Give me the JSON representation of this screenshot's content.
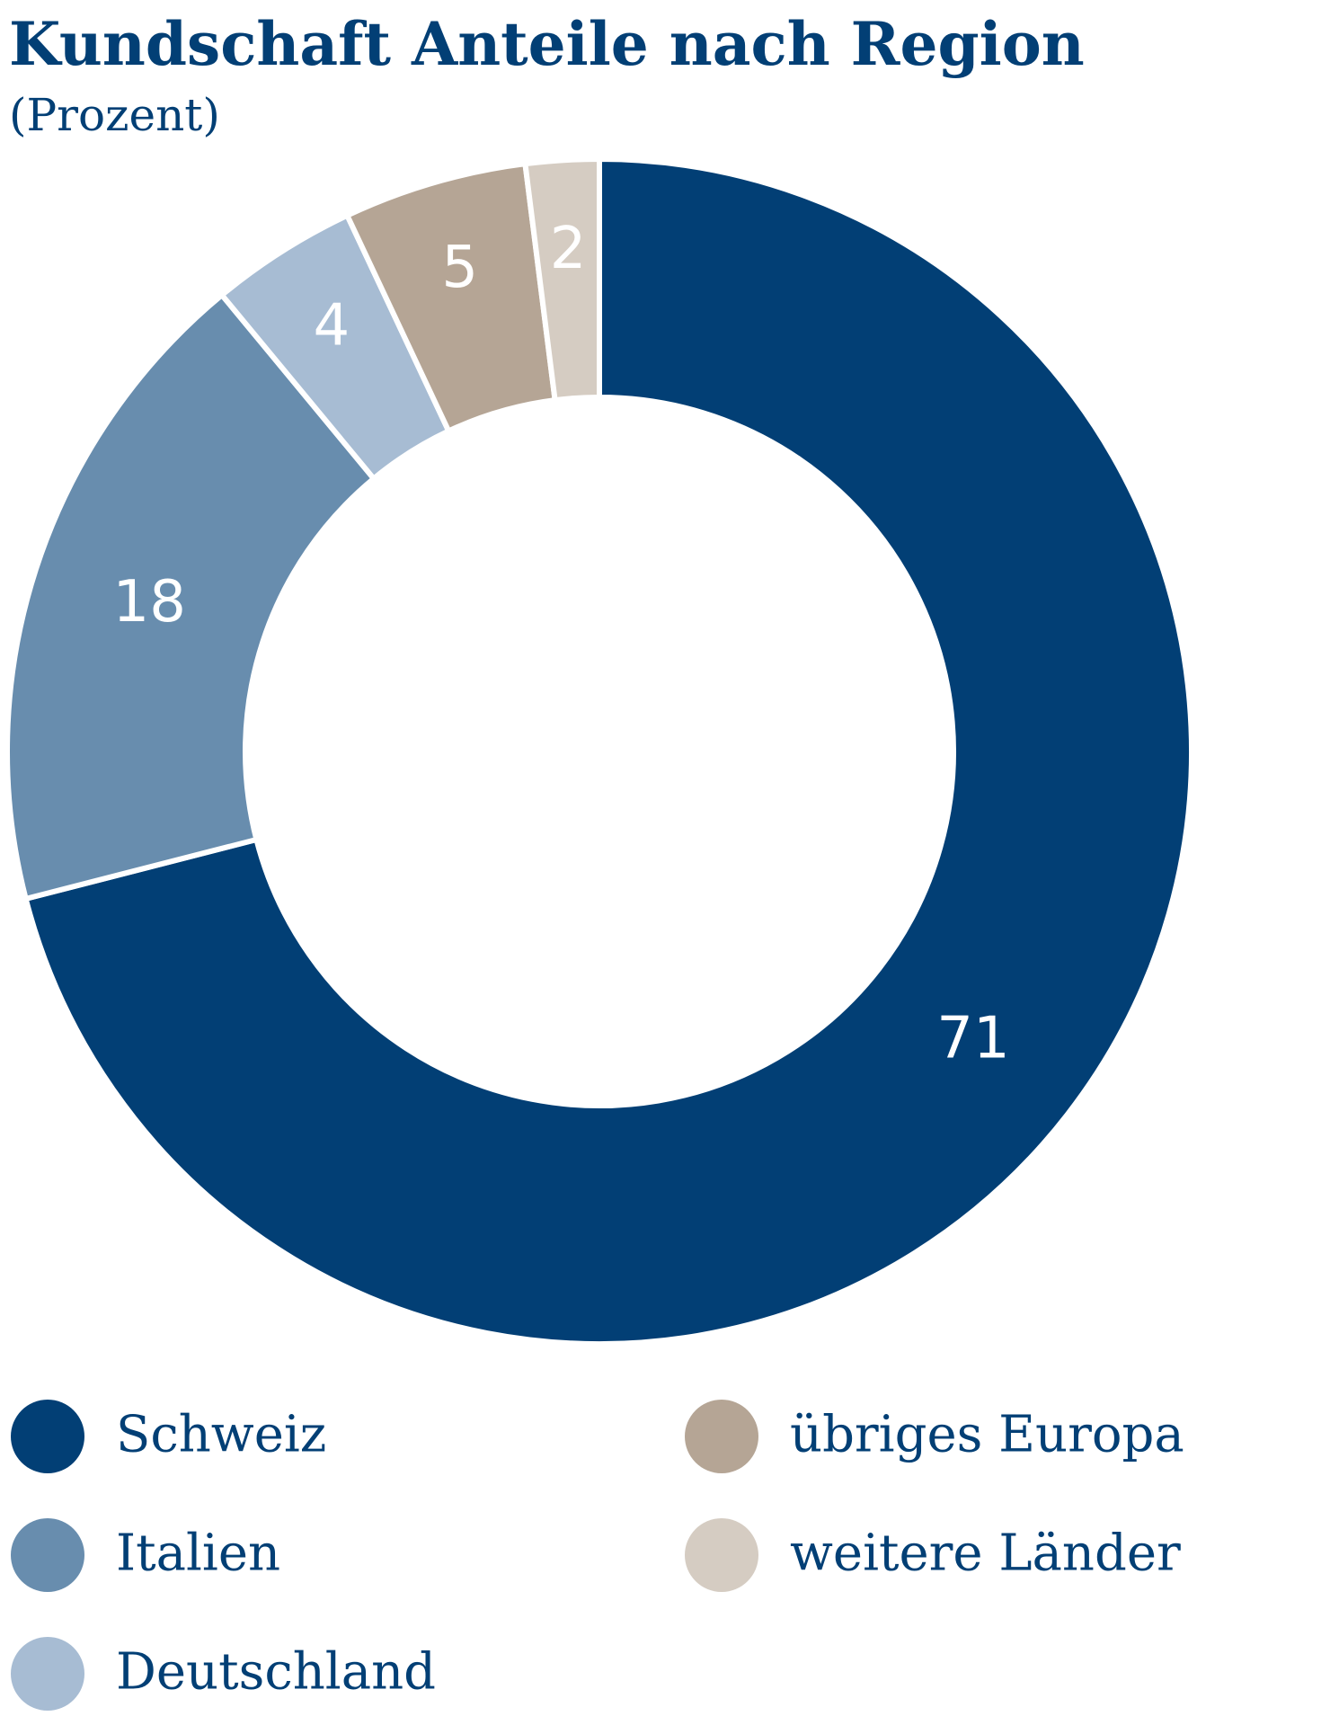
{
  "chart_data": {
    "type": "donut",
    "title": "Kundschaft Anteile nach Region",
    "subtitle": "(Prozent)",
    "categories": [
      "Schweiz",
      "Italien",
      "Deutschland",
      "übriges Europa",
      "weitere Länder"
    ],
    "values": [
      71,
      18,
      4,
      5,
      2
    ],
    "colors": [
      "#023f75",
      "#688dae",
      "#a7bcd3",
      "#b5a595",
      "#d5ccc2"
    ]
  }
}
